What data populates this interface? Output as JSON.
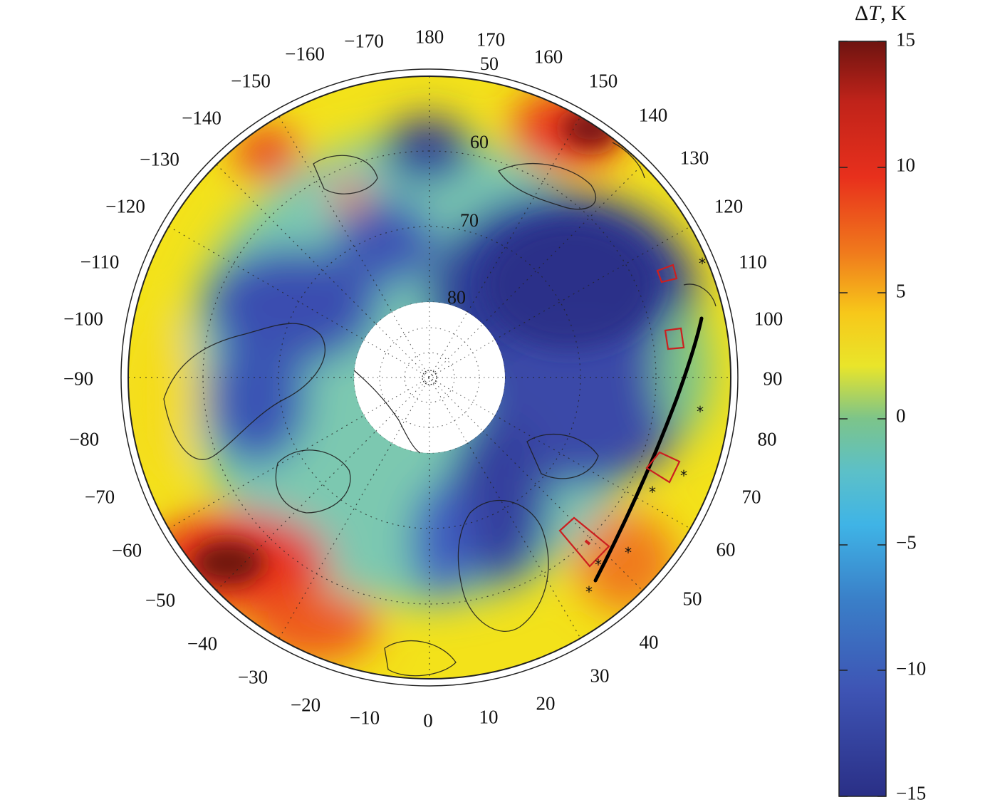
{
  "colorbar": {
    "title_symbol": "Δ",
    "title_var": "T",
    "title_unit": ", K",
    "range": [
      -15,
      15
    ],
    "ticks": [
      "15",
      "10",
      "5",
      "0",
      "−5",
      "−10",
      "−15"
    ],
    "tick_values": [
      15,
      10,
      5,
      0,
      -5,
      -10,
      -15
    ]
  },
  "map": {
    "projection": "north polar stereographic",
    "lon_labels": [
      "180",
      "170",
      "160",
      "150",
      "140",
      "130",
      "120",
      "110",
      "100",
      "90",
      "80",
      "70",
      "60",
      "50",
      "40",
      "30",
      "20",
      "10",
      "0",
      "−10",
      "−20",
      "−30",
      "−40",
      "−50",
      "−60",
      "−70",
      "−80",
      "−90",
      "−100",
      "−110",
      "−120",
      "−130",
      "−140",
      "−150",
      "−160",
      "−170"
    ],
    "lat_labels": [
      "50",
      "60",
      "70",
      "80"
    ],
    "colors": {
      "extreme_cold": "#2a2f86",
      "cold": "#3e54b4",
      "cool": "#3fb4e6",
      "neutral": "#7cc48a",
      "warm": "#f3e21a",
      "hot": "#e8301c",
      "extreme_hot": "#6e1410",
      "track": "#000000",
      "boxes": "#cc1f1f"
    }
  }
}
